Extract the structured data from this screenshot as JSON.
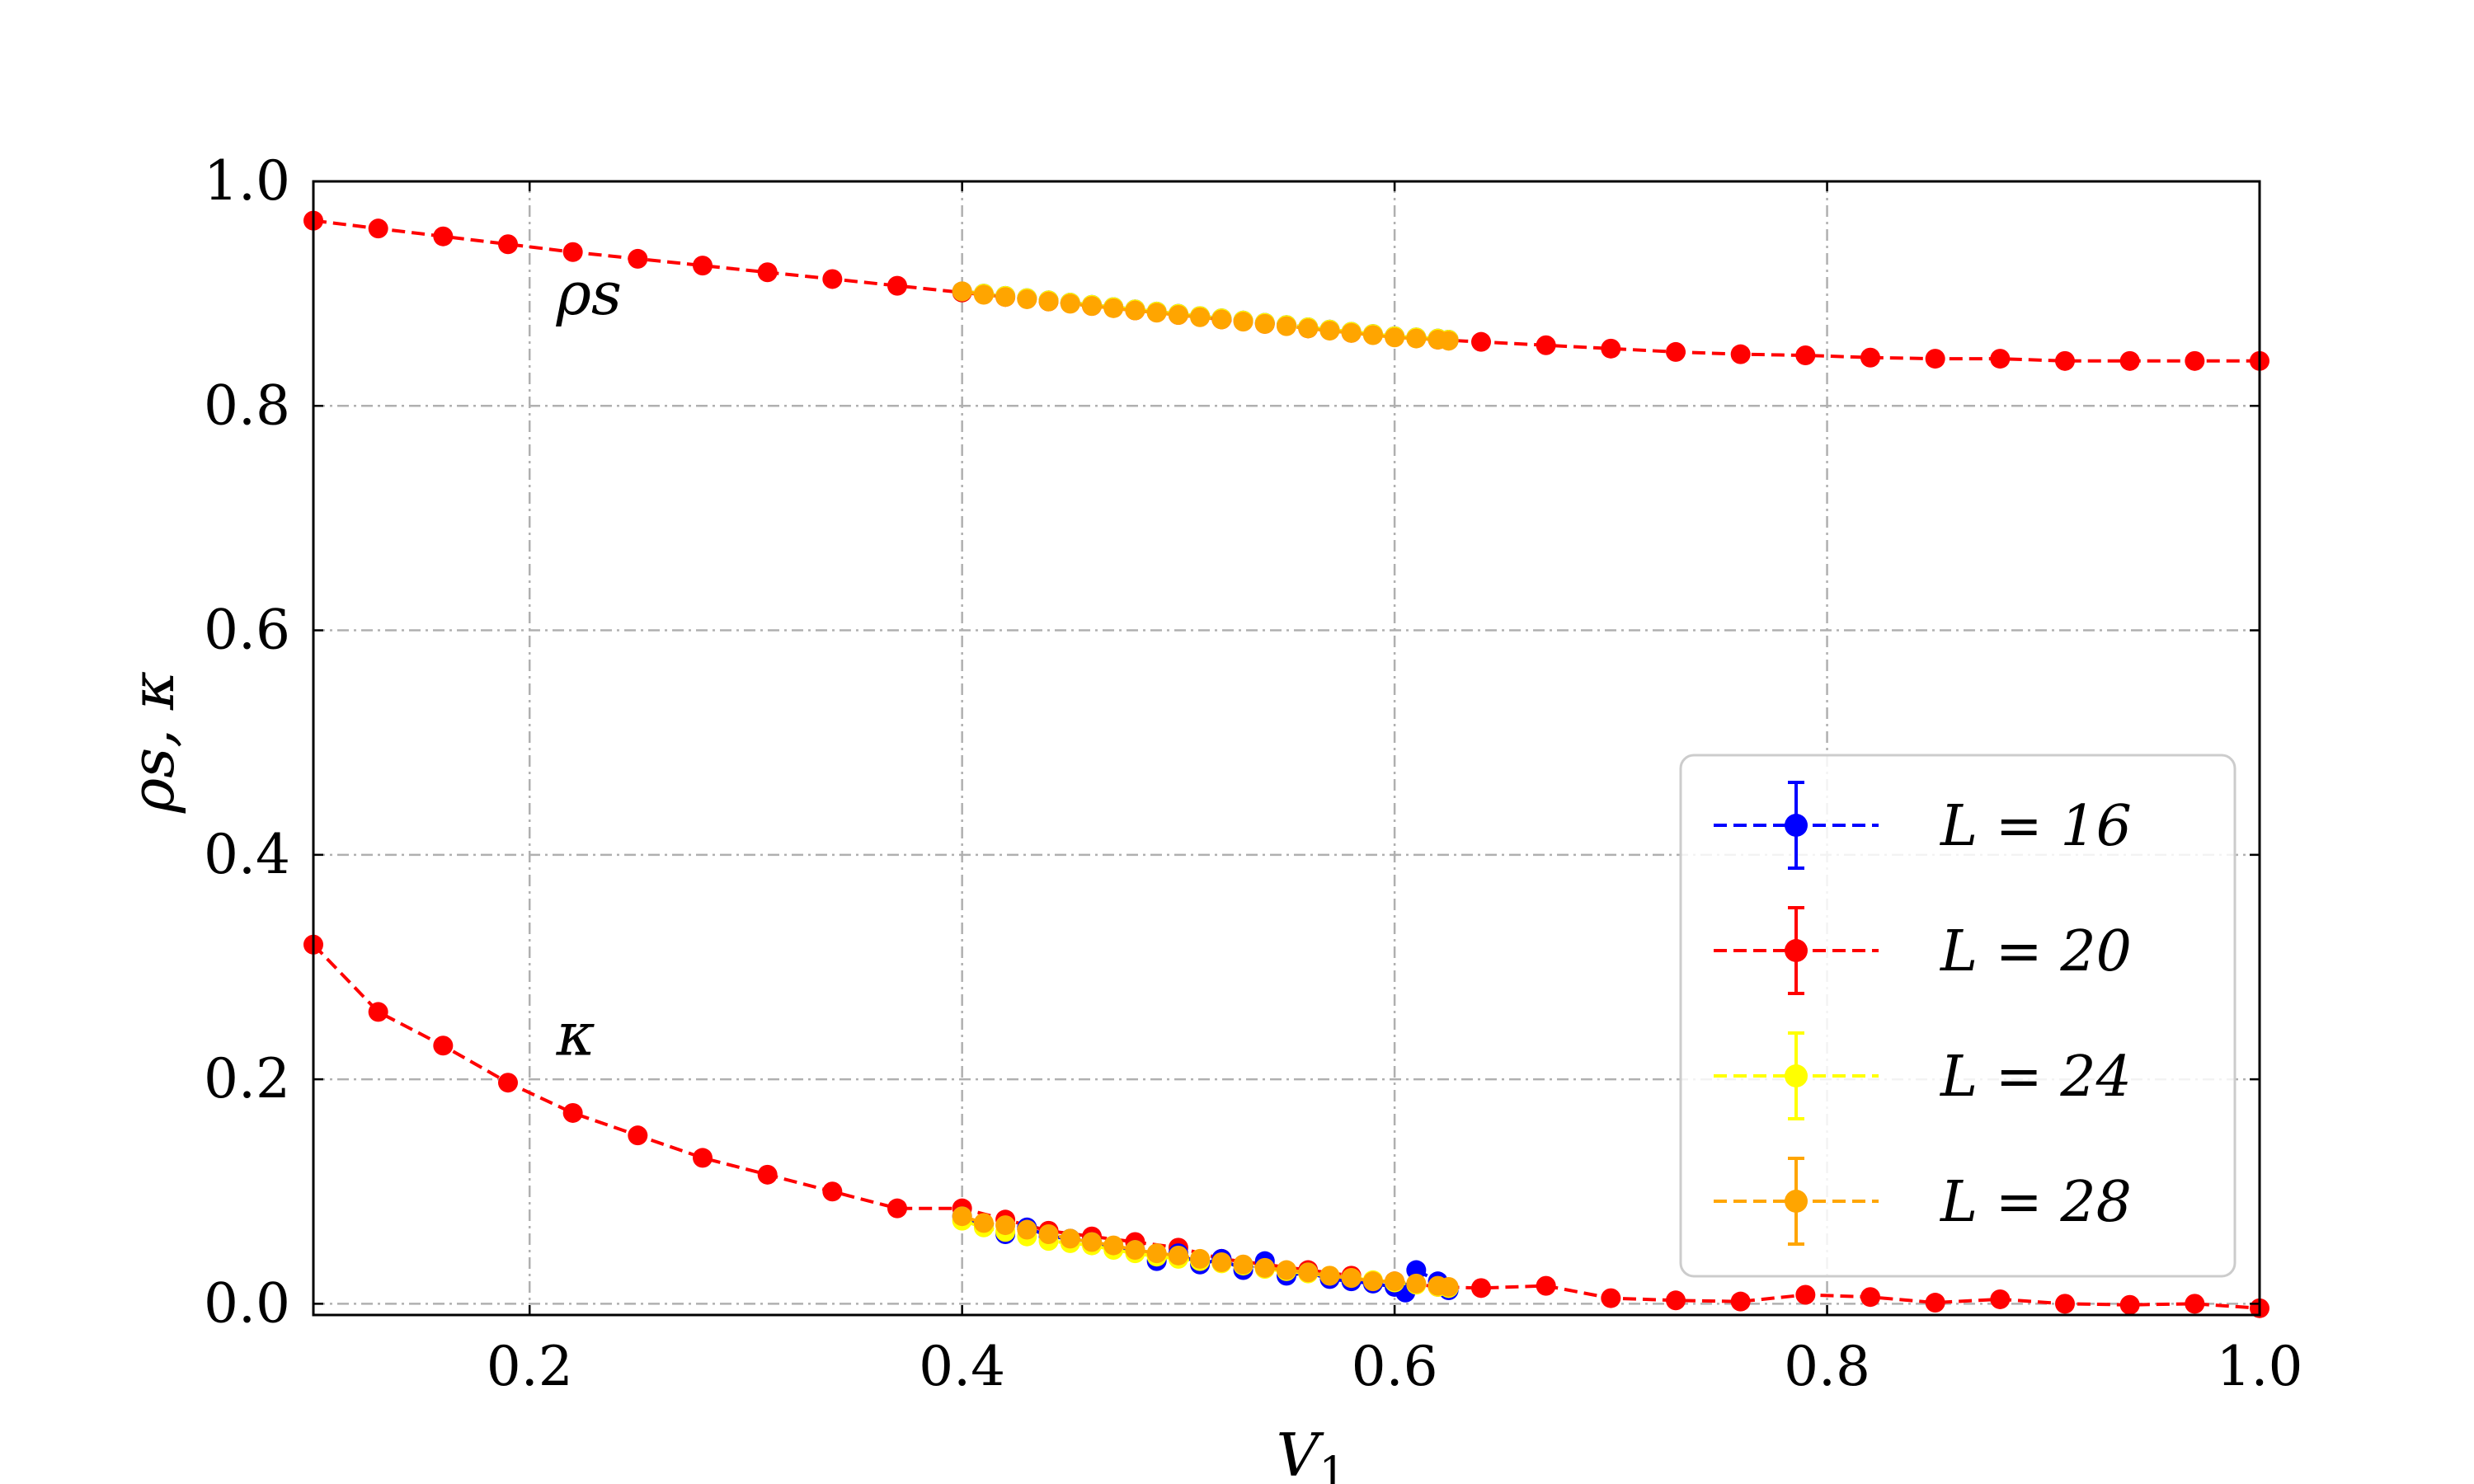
{
  "chart_data": {
    "type": "line",
    "xlabel": "V",
    "xlabel_sub": "1",
    "ylabel": "ρs, κ",
    "xlim": [
      0.1,
      1.0
    ],
    "ylim": [
      -0.01,
      1.0
    ],
    "xticks": [
      0.2,
      0.4,
      0.6,
      0.8,
      1.0
    ],
    "xtick_labels": [
      "0.2",
      "0.4",
      "0.6",
      "0.8",
      "1.0"
    ],
    "yticks": [
      0.0,
      0.2,
      0.4,
      0.6,
      0.8,
      1.0
    ],
    "ytick_labels": [
      "0.0",
      "0.2",
      "0.4",
      "0.6",
      "0.8",
      "1.0"
    ],
    "grid": true,
    "legend_position": "lower-right",
    "annotations": [
      {
        "text": "ρs",
        "x": 0.22,
        "y": 0.9
      },
      {
        "text": "κ",
        "x": 0.22,
        "y": 0.24
      }
    ],
    "series": [
      {
        "name": "L = 16",
        "color": "#0000ff",
        "rho_x": [
          0.4,
          0.41,
          0.42,
          0.43,
          0.44,
          0.45,
          0.46,
          0.47,
          0.48,
          0.49,
          0.5,
          0.51,
          0.52,
          0.53,
          0.54,
          0.55,
          0.56,
          0.57,
          0.58,
          0.59,
          0.6,
          0.61,
          0.62,
          0.625
        ],
        "rho_y": [
          0.902,
          0.9,
          0.898,
          0.896,
          0.894,
          0.892,
          0.89,
          0.888,
          0.886,
          0.884,
          0.882,
          0.88,
          0.878,
          0.876,
          0.874,
          0.872,
          0.87,
          0.868,
          0.866,
          0.864,
          0.862,
          0.861,
          0.86,
          0.859
        ],
        "kappa_x": [
          0.4,
          0.41,
          0.42,
          0.43,
          0.44,
          0.45,
          0.46,
          0.47,
          0.48,
          0.49,
          0.5,
          0.51,
          0.52,
          0.53,
          0.54,
          0.55,
          0.56,
          0.57,
          0.58,
          0.59,
          0.6,
          0.605,
          0.61,
          0.62,
          0.625
        ],
        "kappa_y": [
          0.078,
          0.07,
          0.062,
          0.068,
          0.06,
          0.058,
          0.055,
          0.05,
          0.048,
          0.038,
          0.045,
          0.035,
          0.04,
          0.03,
          0.038,
          0.025,
          0.028,
          0.022,
          0.02,
          0.018,
          0.015,
          0.01,
          0.03,
          0.02,
          0.012
        ]
      },
      {
        "name": "L = 20",
        "color": "#ff0000",
        "rho_x": [
          0.1,
          0.13,
          0.16,
          0.19,
          0.22,
          0.25,
          0.28,
          0.31,
          0.34,
          0.37,
          0.4,
          0.42,
          0.44,
          0.46,
          0.48,
          0.5,
          0.52,
          0.54,
          0.56,
          0.58,
          0.6,
          0.62,
          0.64,
          0.67,
          0.7,
          0.73,
          0.76,
          0.79,
          0.82,
          0.85,
          0.88,
          0.91,
          0.94,
          0.97,
          1.0
        ],
        "rho_y": [
          0.965,
          0.958,
          0.951,
          0.944,
          0.937,
          0.931,
          0.925,
          0.919,
          0.913,
          0.907,
          0.901,
          0.897,
          0.893,
          0.889,
          0.885,
          0.881,
          0.877,
          0.873,
          0.869,
          0.865,
          0.862,
          0.859,
          0.857,
          0.854,
          0.851,
          0.848,
          0.846,
          0.845,
          0.843,
          0.842,
          0.842,
          0.84,
          0.84,
          0.84,
          0.84
        ],
        "kappa_x": [
          0.1,
          0.13,
          0.16,
          0.19,
          0.22,
          0.25,
          0.28,
          0.31,
          0.34,
          0.37,
          0.4,
          0.42,
          0.44,
          0.46,
          0.48,
          0.5,
          0.52,
          0.54,
          0.56,
          0.58,
          0.6,
          0.62,
          0.64,
          0.67,
          0.7,
          0.73,
          0.76,
          0.79,
          0.82,
          0.85,
          0.88,
          0.91,
          0.94,
          0.97,
          1.0
        ],
        "kappa_y": [
          0.32,
          0.26,
          0.23,
          0.197,
          0.17,
          0.15,
          0.13,
          0.115,
          0.1,
          0.085,
          0.085,
          0.075,
          0.065,
          0.06,
          0.055,
          0.05,
          0.04,
          0.035,
          0.03,
          0.025,
          0.02,
          0.015,
          0.014,
          0.016,
          0.005,
          0.003,
          0.002,
          0.008,
          0.006,
          0.001,
          0.004,
          0.0,
          -0.001,
          0.0,
          -0.004
        ]
      },
      {
        "name": "L = 24",
        "color": "#ffff00",
        "rho_x": [
          0.4,
          0.41,
          0.42,
          0.43,
          0.44,
          0.45,
          0.46,
          0.47,
          0.48,
          0.49,
          0.5,
          0.51,
          0.52,
          0.53,
          0.54,
          0.55,
          0.56,
          0.57,
          0.58,
          0.59,
          0.6,
          0.61,
          0.62,
          0.625
        ],
        "rho_y": [
          0.902,
          0.9,
          0.898,
          0.896,
          0.894,
          0.892,
          0.89,
          0.888,
          0.886,
          0.884,
          0.882,
          0.88,
          0.878,
          0.876,
          0.874,
          0.872,
          0.87,
          0.868,
          0.866,
          0.864,
          0.862,
          0.861,
          0.86,
          0.859
        ],
        "kappa_x": [
          0.4,
          0.41,
          0.42,
          0.43,
          0.44,
          0.45,
          0.46,
          0.47,
          0.48,
          0.49,
          0.5,
          0.51,
          0.52,
          0.53,
          0.54,
          0.55,
          0.56,
          0.57,
          0.58,
          0.59,
          0.6,
          0.61,
          0.62,
          0.625
        ],
        "kappa_y": [
          0.074,
          0.068,
          0.064,
          0.06,
          0.056,
          0.054,
          0.052,
          0.048,
          0.045,
          0.042,
          0.04,
          0.038,
          0.036,
          0.034,
          0.031,
          0.029,
          0.027,
          0.025,
          0.023,
          0.021,
          0.019,
          0.017,
          0.015,
          0.014
        ]
      },
      {
        "name": "L = 28",
        "color": "#ffa500",
        "rho_x": [
          0.4,
          0.41,
          0.42,
          0.43,
          0.44,
          0.45,
          0.46,
          0.47,
          0.48,
          0.49,
          0.5,
          0.51,
          0.52,
          0.53,
          0.54,
          0.55,
          0.56,
          0.57,
          0.58,
          0.59,
          0.6,
          0.61,
          0.62,
          0.625
        ],
        "rho_y": [
          0.902,
          0.899,
          0.897,
          0.895,
          0.893,
          0.891,
          0.889,
          0.887,
          0.885,
          0.883,
          0.881,
          0.879,
          0.877,
          0.875,
          0.873,
          0.871,
          0.869,
          0.867,
          0.865,
          0.863,
          0.861,
          0.86,
          0.859,
          0.858
        ],
        "kappa_x": [
          0.4,
          0.41,
          0.42,
          0.43,
          0.44,
          0.45,
          0.46,
          0.47,
          0.48,
          0.49,
          0.5,
          0.51,
          0.52,
          0.53,
          0.54,
          0.55,
          0.56,
          0.57,
          0.58,
          0.59,
          0.6,
          0.61,
          0.62,
          0.625
        ],
        "kappa_y": [
          0.078,
          0.072,
          0.07,
          0.066,
          0.062,
          0.058,
          0.055,
          0.052,
          0.048,
          0.045,
          0.043,
          0.04,
          0.037,
          0.035,
          0.032,
          0.03,
          0.028,
          0.025,
          0.023,
          0.02,
          0.02,
          0.018,
          0.016,
          0.015
        ]
      }
    ]
  },
  "legend": {
    "items": [
      {
        "label": "L = 16"
      },
      {
        "label": "L = 20"
      },
      {
        "label": "L = 24"
      },
      {
        "label": "L = 28"
      }
    ]
  }
}
